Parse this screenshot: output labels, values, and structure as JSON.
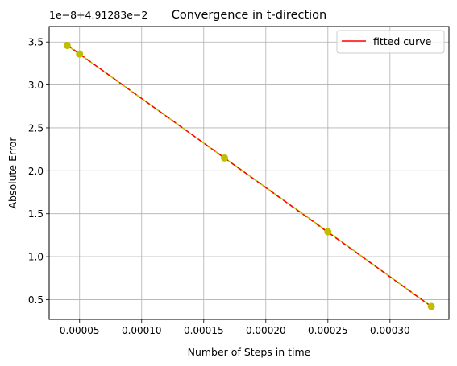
{
  "chart_data": {
    "type": "line",
    "title": "Convergence in t-direction",
    "xlabel": "Number of Steps in time",
    "ylabel": "Absolute Error",
    "offset_label": "1e−8+4.91283e−2",
    "xlim": [
      2.55e-05,
      0.0003475
    ],
    "ylim": [
      0.27,
      3.68
    ],
    "x_ticks": [
      5e-05,
      0.0001,
      0.00015,
      0.0002,
      0.00025,
      0.0003
    ],
    "x_tick_labels": [
      "0.00005",
      "0.00010",
      "0.00015",
      "0.00020",
      "0.00025",
      "0.00030"
    ],
    "y_ticks": [
      0.5,
      1.0,
      1.5,
      2.0,
      2.5,
      3.0,
      3.5
    ],
    "y_tick_labels": [
      "0.5",
      "1.0",
      "1.5",
      "2.0",
      "2.5",
      "3.0",
      "3.5"
    ],
    "grid": true,
    "legend_position": "top-right",
    "series": [
      {
        "style": "points",
        "color": "#bfbf00",
        "x": [
          4e-05,
          5e-05,
          0.0001667,
          0.00025,
          0.0003333
        ],
        "y": [
          3.46,
          3.36,
          2.15,
          1.29,
          0.42
        ]
      },
      {
        "style": "line",
        "color": "#bfbf00",
        "x": [
          4e-05,
          5e-05,
          0.0001667,
          0.00025,
          0.0003333
        ],
        "y": [
          3.46,
          3.36,
          2.15,
          1.29,
          0.42
        ]
      },
      {
        "name": "fitted curve",
        "style": "dashed-line",
        "color": "#ff0000",
        "x": [
          4e-05,
          0.0003333
        ],
        "y": [
          3.465,
          0.42
        ]
      }
    ]
  }
}
